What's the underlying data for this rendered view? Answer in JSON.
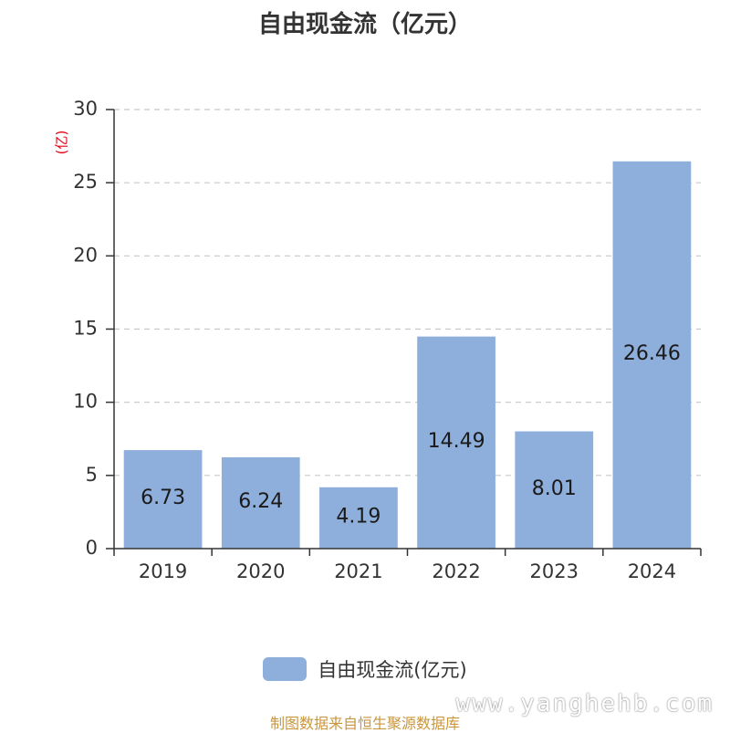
{
  "chart_data": {
    "type": "bar",
    "title": "自由现金流（亿元）",
    "ylabel": "(亿)",
    "categories": [
      "2019",
      "2020",
      "2021",
      "2022",
      "2023",
      "2024"
    ],
    "series": [
      {
        "name": "自由现金流(亿元)",
        "values": [
          6.73,
          6.24,
          4.19,
          14.49,
          8.01,
          26.46
        ],
        "color": "#8eaedb"
      }
    ],
    "ylim": [
      0,
      30
    ],
    "yticks": [
      0,
      5,
      10,
      15,
      20,
      25,
      30
    ],
    "grid": true,
    "legend_position": "bottom"
  },
  "source_note": "制图数据来自恒生聚源数据库",
  "watermark": "www.yanghehb.com"
}
